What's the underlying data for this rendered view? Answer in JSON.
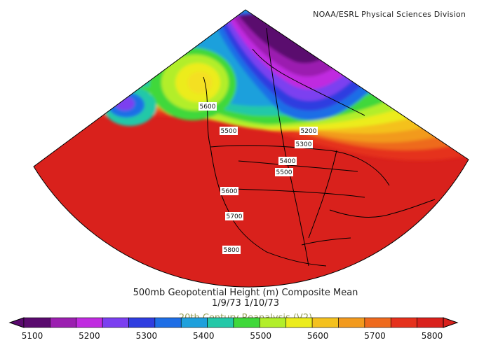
{
  "credit": "NOAA/ESRL Physical Sciences Division",
  "title": {
    "line1": "500mb Geopotential Height (m) Composite Mean",
    "line2": "1/9/73 1/10/73",
    "line3": "20th Century Reanalysis (V2)"
  },
  "map_data": {
    "variable": "500mb Geopotential Height",
    "units": "m",
    "projection": "conic",
    "contour_labels": [
      "5600",
      "5500",
      "5200",
      "5300",
      "5400",
      "5500",
      "5600",
      "5700",
      "5800"
    ]
  },
  "colorbar": {
    "ticks": [
      "5100",
      "5200",
      "5300",
      "5400",
      "5500",
      "5600",
      "5700",
      "5800"
    ],
    "colors": [
      "#5a0a6e",
      "#9b1fb0",
      "#c02be0",
      "#7b3ff0",
      "#2f3de0",
      "#1e6ee6",
      "#1ea0dc",
      "#24c8a8",
      "#3fd83a",
      "#b2ee2a",
      "#ecec1c",
      "#f4c11e",
      "#f29a1e",
      "#ee6a1e",
      "#e5311c",
      "#d9211c"
    ]
  }
}
